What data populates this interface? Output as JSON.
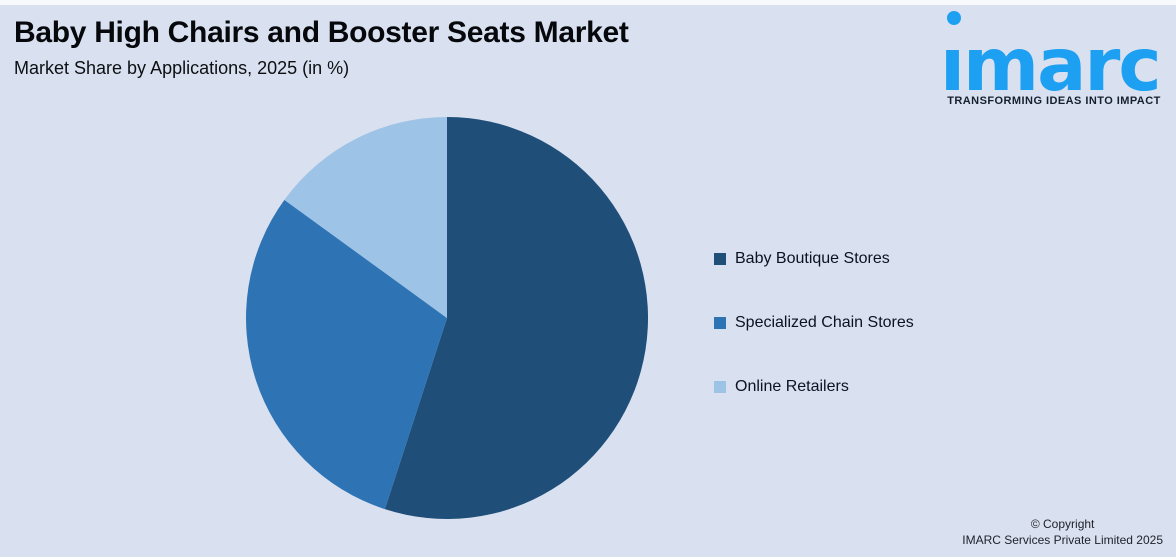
{
  "header": {
    "title": "Baby High Chairs and Booster Seats Market",
    "subtitle": "Market Share by Applications, 2025 (in %)"
  },
  "logo": {
    "brand": "imarc",
    "brand_display": "ımarc",
    "tagline": "TRANSFORMING IDEAS INTO IMPACT",
    "color": "#1da0f2"
  },
  "chart_data": {
    "type": "pie",
    "title": "Baby High Chairs and Booster Seats Market",
    "subtitle": "Market Share by Applications, 2025 (in %)",
    "labels": [
      "Baby Boutique Stores",
      "Specialized Chain Stores",
      "Online Retailers"
    ],
    "values": [
      55,
      30,
      15
    ],
    "unit": "%",
    "colors": [
      "#1f4e79",
      "#2e74b5",
      "#9dc3e6"
    ],
    "start_angle_deg": 0,
    "direction": "clockwise",
    "legend_position": "right",
    "data_labels_shown": false
  },
  "footer": {
    "line1": "© Copyright",
    "line2": "IMARC Services Private Limited 2025"
  },
  "palette": {
    "background": "#d9e1f0",
    "title_text": "#06080b",
    "legend_text": "#0b1320"
  }
}
